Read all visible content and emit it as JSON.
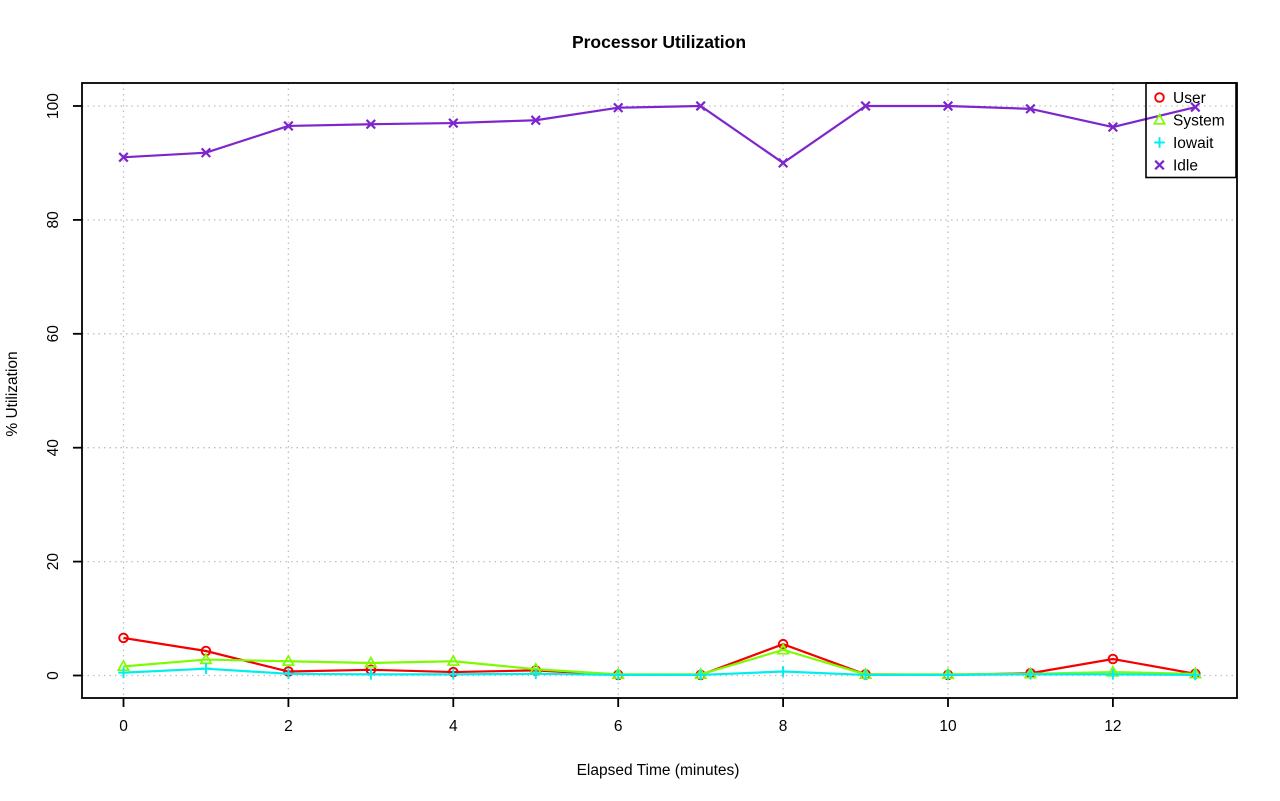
{
  "chart_data": {
    "type": "line",
    "title": "Processor Utilization",
    "xlabel": "Elapsed Time (minutes)",
    "ylabel": "% Utilization",
    "x": [
      0,
      1,
      2,
      3,
      4,
      5,
      6,
      7,
      8,
      9,
      10,
      11,
      12,
      13
    ],
    "xlim": [
      0,
      13
    ],
    "ylim": [
      0,
      100
    ],
    "x_ticks": [
      0,
      2,
      4,
      6,
      8,
      10,
      12
    ],
    "y_ticks": [
      0,
      20,
      40,
      60,
      80,
      100
    ],
    "grid": true,
    "grid_style": "dotted",
    "legend_position": "topright",
    "series": [
      {
        "name": "User",
        "color": "#f50000",
        "marker": "circle",
        "values": [
          6.6,
          4.3,
          0.7,
          1.0,
          0.6,
          0.9,
          0.1,
          0.1,
          5.5,
          0.2,
          0.1,
          0.4,
          2.9,
          0.3
        ]
      },
      {
        "name": "System",
        "color": "#7cfc00",
        "marker": "triangle",
        "values": [
          1.6,
          2.8,
          2.5,
          2.2,
          2.5,
          1.1,
          0.2,
          0.2,
          4.5,
          0.2,
          0.2,
          0.3,
          0.6,
          0.3
        ]
      },
      {
        "name": "Iowait",
        "color": "#00eeee",
        "marker": "plus",
        "values": [
          0.5,
          1.2,
          0.3,
          0.2,
          0.2,
          0.3,
          0.1,
          0.1,
          0.7,
          0.1,
          0.1,
          0.2,
          0.2,
          0.1
        ]
      },
      {
        "name": "Idle",
        "color": "#7d26cd",
        "marker": "x",
        "values": [
          91.0,
          91.8,
          96.5,
          96.8,
          97.0,
          97.5,
          99.7,
          100.0,
          90.0,
          100.0,
          100.0,
          99.5,
          96.3,
          99.8
        ]
      }
    ],
    "colors": {
      "axis": "#000000",
      "grid": "#bfbfbf",
      "background": "#ffffff"
    }
  }
}
